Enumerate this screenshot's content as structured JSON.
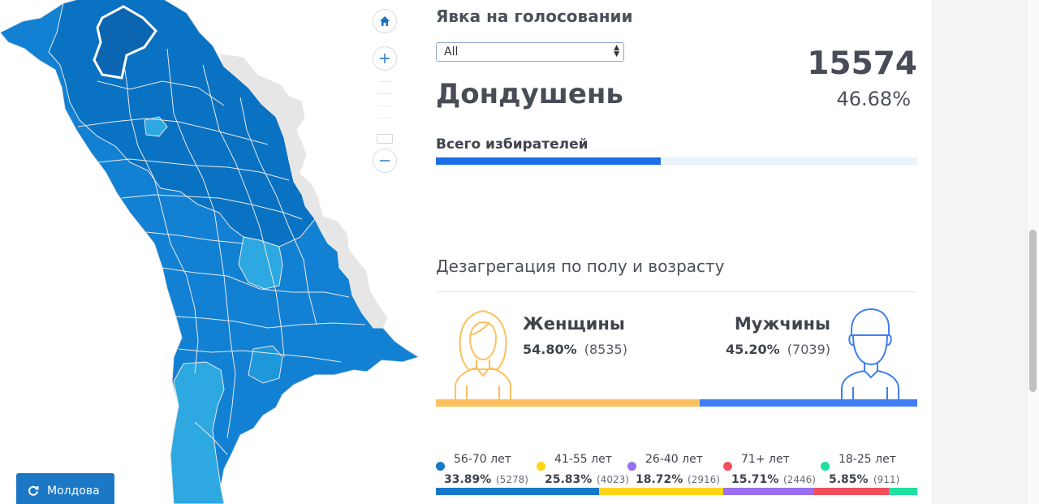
{
  "map": {
    "home_icon": "home-icon",
    "zoom_in_icon": "plus-icon",
    "zoom_out_icon": "minus-icon",
    "reset_button_label": "Молдова",
    "reset_icon": "refresh-icon",
    "colors": {
      "dark": "#0a72c2",
      "mid": "#1381d3",
      "light": "#1e97db",
      "lighter": "#2da8e0",
      "border": "#e9e9e9",
      "selected": "#0b65b0"
    }
  },
  "panel": {
    "section_title": "Явка на голосовании",
    "filter": {
      "value": "All"
    },
    "district_name": "Дондушень",
    "turnout_count": "15574",
    "turnout_percent": "46.68%",
    "voters_label": "Всего избирателей",
    "voters_fill": 0.4668,
    "disagg_title": "Дезагрегация по полу и возрасту",
    "female": {
      "label": "Женщины",
      "percent": "54.80%",
      "count": "(8535)",
      "color": "#fcc15e",
      "icon": "female-avatar-icon"
    },
    "male": {
      "label": "Мужчины",
      "percent": "45.20%",
      "count": "(7039)",
      "color": "#3f7ef2",
      "icon": "male-avatar-icon"
    },
    "age_groups": [
      {
        "label": "56-70 лет",
        "percent": "33.89%",
        "count": "(5278)",
        "share": 0.3389,
        "color": "#1479c6"
      },
      {
        "label": "41-55 лет",
        "percent": "25.83%",
        "count": "(4023)",
        "share": 0.2583,
        "color": "#ffd41a"
      },
      {
        "label": "26-40 лет",
        "percent": "18.72%",
        "count": "(2916)",
        "share": 0.1872,
        "color": "#9a6ff0"
      },
      {
        "label": "71+ лет",
        "percent": "15.71%",
        "count": "(2446)",
        "share": 0.1571,
        "color": "#f0505d"
      },
      {
        "label": "18-25 лет",
        "percent": "5.85%",
        "count": "(911)",
        "share": 0.0585,
        "color": "#1fe0a0"
      }
    ]
  }
}
